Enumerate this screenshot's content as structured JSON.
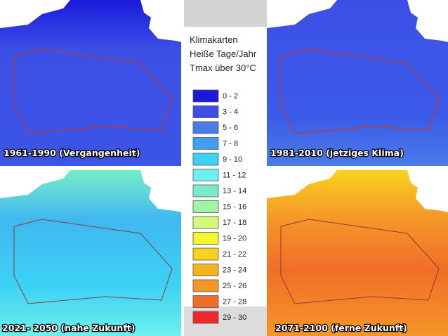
{
  "legend": {
    "title_lines": [
      "Klimakarten",
      "Heiße Tage/Jahr",
      "Tmax über 30°C"
    ],
    "items": [
      {
        "label": "0 - 2",
        "color": "#1a1adc"
      },
      {
        "label": "3 - 4",
        "color": "#3c50e6"
      },
      {
        "label": "5 - 6",
        "color": "#4a7ce8"
      },
      {
        "label": "7 - 8",
        "color": "#3fa0f0"
      },
      {
        "label": "9 - 10",
        "color": "#3cd2f5"
      },
      {
        "label": "11 - 12",
        "color": "#6ef0ee"
      },
      {
        "label": "13 - 14",
        "color": "#78ecc8"
      },
      {
        "label": "15 - 16",
        "color": "#a0f5a5"
      },
      {
        "label": "17 - 18",
        "color": "#d2fa78"
      },
      {
        "label": "19 - 20",
        "color": "#f5f52d"
      },
      {
        "label": "21 - 22",
        "color": "#fad21e"
      },
      {
        "label": "23 - 24",
        "color": "#f5b41e"
      },
      {
        "label": "25 - 26",
        "color": "#f59628"
      },
      {
        "label": "27 - 28",
        "color": "#f06e28"
      },
      {
        "label": "29 - 30",
        "color": "#f02828"
      }
    ]
  },
  "maps": [
    {
      "caption": "1961-1990 (Vergangenheit)"
    },
    {
      "caption": "1981-2010 (jetziges Klima)"
    },
    {
      "caption": "2021- 2050 (nahe Zukunft)"
    },
    {
      "caption": "2071-2100 (ferne Zukunft)"
    }
  ]
}
